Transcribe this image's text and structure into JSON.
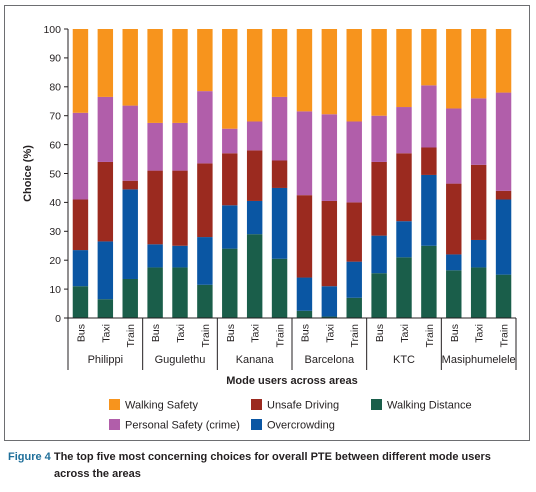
{
  "chart_data": {
    "type": "bar",
    "stacked": true,
    "ylabel": "Choice (%)",
    "xlabel": "Mode users across areas",
    "ylim": [
      0,
      100
    ],
    "yticks": [
      0,
      10,
      20,
      30,
      40,
      50,
      60,
      70,
      80,
      90,
      100
    ],
    "grid": false,
    "legend_position": "bottom",
    "groups": [
      {
        "area": "Philippi",
        "modes": [
          "Bus",
          "Taxi",
          "Train"
        ]
      },
      {
        "area": "Gugulethu",
        "modes": [
          "Bus",
          "Taxi",
          "Train"
        ]
      },
      {
        "area": "Kanana",
        "modes": [
          "Bus",
          "Taxi",
          "Train"
        ]
      },
      {
        "area": "Barcelona",
        "modes": [
          "Bus",
          "Taxi",
          "Train"
        ]
      },
      {
        "area": "KTC",
        "modes": [
          "Bus",
          "Taxi",
          "Train"
        ]
      },
      {
        "area": "Masiphumelele",
        "modes": [
          "Bus",
          "Taxi",
          "Train"
        ]
      }
    ],
    "series": [
      {
        "name": "Walking Distance",
        "color": "#1a5e4a",
        "values": [
          11,
          6.5,
          13.5,
          17.5,
          17.5,
          11.5,
          24,
          29,
          20.5,
          2.5,
          0.5,
          7,
          15.5,
          21,
          25,
          16.5,
          17.5,
          15
        ]
      },
      {
        "name": "Overcrowding",
        "color": "#0a56a3",
        "values": [
          12.5,
          20,
          31,
          8,
          7.5,
          16.5,
          15,
          11.5,
          24.5,
          11.5,
          10.5,
          12.5,
          13,
          12.5,
          24.5,
          5.5,
          9.5,
          26
        ]
      },
      {
        "name": "Unsafe Driving",
        "color": "#9b2a1f",
        "values": [
          17.5,
          27.5,
          3,
          25.5,
          26,
          25.5,
          18,
          17.5,
          9.5,
          28.5,
          29.5,
          20.5,
          25.5,
          23.5,
          9.5,
          24.5,
          26,
          3
        ]
      },
      {
        "name": "Personal Safety (crime)",
        "color": "#b15eaa",
        "values": [
          30,
          22.5,
          26,
          16.5,
          16.5,
          25,
          8.5,
          10,
          22,
          29,
          30,
          28,
          16,
          16,
          21.5,
          26,
          23,
          34
        ]
      },
      {
        "name": "Walking Safety",
        "color": "#f7941d",
        "values": [
          29,
          23.5,
          26.5,
          32.5,
          32.5,
          21.5,
          34.5,
          32,
          23.5,
          28.5,
          29.5,
          32,
          30,
          27,
          19.5,
          27.5,
          24,
          22
        ]
      }
    ],
    "legend_order": [
      "Walking Safety",
      "Unsafe Driving",
      "Walking Distance",
      "Personal Safety (crime)",
      "Overcrowding"
    ]
  },
  "caption": {
    "figure_label": "Figure 4",
    "text_line1": " The top five most concerning choices for overall PTE between different mode users",
    "text_line2": "across the areas"
  }
}
